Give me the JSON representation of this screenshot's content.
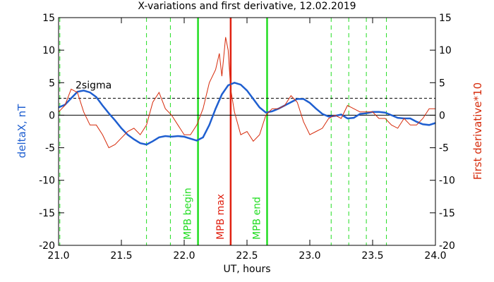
{
  "chart_data": {
    "type": "line",
    "title": "X-variations and first derivative, 12.02.2019",
    "x_label": "UT, hours",
    "y_label": "deltaX, nT",
    "y2_label": "First derivative*10",
    "xlim": [
      21,
      24
    ],
    "ylim": [
      -20,
      15
    ],
    "y2lim": [
      -20,
      15
    ],
    "xticks": [
      {
        "value": 21,
        "label": "21.0"
      },
      {
        "value": 21.5,
        "label": "21.5"
      },
      {
        "value": 22,
        "label": "22.0"
      },
      {
        "value": 22.5,
        "label": "22.5"
      },
      {
        "value": 23,
        "label": "23.0"
      },
      {
        "value": 23.5,
        "label": "23.5"
      },
      {
        "value": 24,
        "label": "24.0"
      }
    ],
    "yticks": [
      15,
      10,
      5,
      0,
      -5,
      -10,
      -15,
      -20
    ],
    "y2ticks": [
      15,
      10,
      5,
      0,
      -5,
      -10,
      -15,
      -20
    ],
    "series": [
      {
        "name": "deltaX, nT",
        "color": "#1f5fd0",
        "axis": "y",
        "x": [
          21,
          21.05,
          21.1,
          21.15,
          21.2,
          21.25,
          21.3,
          21.35,
          21.4,
          21.45,
          21.5,
          21.55,
          21.6,
          21.65,
          21.7,
          21.75,
          21.8,
          21.85,
          21.9,
          21.95,
          22,
          22.05,
          22.1,
          22.15,
          22.2,
          22.25,
          22.3,
          22.35,
          22.4,
          22.45,
          22.5,
          22.55,
          22.6,
          22.65,
          22.7,
          22.75,
          22.8,
          22.85,
          22.9,
          22.95,
          23,
          23.05,
          23.1,
          23.15,
          23.2,
          23.25,
          23.3,
          23.35,
          23.4,
          23.45,
          23.5,
          23.55,
          23.6,
          23.65,
          23.7,
          23.75,
          23.8,
          23.85,
          23.9,
          23.95,
          24
        ],
        "values": [
          1.2,
          1.6,
          2.6,
          3.6,
          3.8,
          3.5,
          2.8,
          1.5,
          0.3,
          -0.8,
          -2,
          -3,
          -3.7,
          -4.3,
          -4.5,
          -4,
          -3.4,
          -3.2,
          -3.3,
          -3.2,
          -3.3,
          -3.6,
          -3.9,
          -3.4,
          -1.5,
          1,
          3.2,
          4.6,
          5,
          4.7,
          3.8,
          2.5,
          1.2,
          0.4,
          0.6,
          1,
          1.5,
          2,
          2.5,
          2.5,
          1.9,
          1,
          0.2,
          -0.2,
          -0.1,
          0.1,
          -0.5,
          -0.4,
          0.2,
          0.3,
          0.5,
          0.5,
          0.4,
          0,
          -0.4,
          -0.5,
          -0.5,
          -1,
          -1.4,
          -1.5,
          -1.2
        ]
      },
      {
        "name": "First derivative*10",
        "color": "#d62a0a",
        "axis": "y2",
        "x": [
          21,
          21.05,
          21.1,
          21.15,
          21.2,
          21.25,
          21.3,
          21.35,
          21.4,
          21.45,
          21.5,
          21.55,
          21.6,
          21.65,
          21.7,
          21.75,
          21.8,
          21.85,
          21.9,
          21.95,
          22,
          22.05,
          22.1,
          22.15,
          22.2,
          22.25,
          22.28,
          22.3,
          22.33,
          22.35,
          22.37,
          22.4,
          22.45,
          22.5,
          22.55,
          22.6,
          22.65,
          22.7,
          22.75,
          22.8,
          22.85,
          22.9,
          22.95,
          23,
          23.05,
          23.1,
          23.15,
          23.2,
          23.25,
          23.3,
          23.35,
          23.4,
          23.45,
          23.5,
          23.55,
          23.6,
          23.65,
          23.7,
          23.75,
          23.8,
          23.85,
          23.9,
          23.95,
          24
        ],
        "values": [
          0.5,
          1.5,
          4,
          3.5,
          0.5,
          -1.5,
          -1.5,
          -3,
          -5,
          -4.5,
          -3.5,
          -2.5,
          -2,
          -3,
          -1.5,
          2,
          3.5,
          1,
          0,
          -1.5,
          -3,
          -3,
          -1.5,
          1,
          5,
          7,
          9.5,
          6,
          12,
          10,
          4,
          0.5,
          -3,
          -2.5,
          -4,
          -3,
          0,
          1,
          1,
          1.5,
          3,
          2,
          -1,
          -3,
          -2.5,
          -2,
          -0.5,
          0,
          -0.5,
          1.5,
          1,
          0.5,
          0.5,
          0.5,
          -0.5,
          -0.5,
          -1.5,
          -2,
          -0.5,
          -1.5,
          -1.5,
          -0.5,
          1,
          1
        ]
      }
    ],
    "hlines": [
      {
        "value": 0,
        "style": "solid"
      },
      {
        "value": 2.6,
        "style": "dashed",
        "label": "2sigma"
      }
    ],
    "vlines": [
      {
        "value": 21.01,
        "color": "#22dd22",
        "style": "dashed"
      },
      {
        "value": 21.7,
        "color": "#22dd22",
        "style": "dashed"
      },
      {
        "value": 21.89,
        "color": "#22dd22",
        "style": "dashed"
      },
      {
        "value": 22.11,
        "color": "#22dd22",
        "style": "solid",
        "label": "MPB begin"
      },
      {
        "value": 22.37,
        "color": "#e02010",
        "style": "solid",
        "label": "MPB max"
      },
      {
        "value": 22.66,
        "color": "#22dd22",
        "style": "solid",
        "label": "MPB end"
      },
      {
        "value": 23.17,
        "color": "#22dd22",
        "style": "dashed"
      },
      {
        "value": 23.31,
        "color": "#22dd22",
        "style": "dashed"
      },
      {
        "value": 23.45,
        "color": "#22dd22",
        "style": "dashed"
      },
      {
        "value": 23.61,
        "color": "#22dd22",
        "style": "dashed"
      }
    ]
  }
}
